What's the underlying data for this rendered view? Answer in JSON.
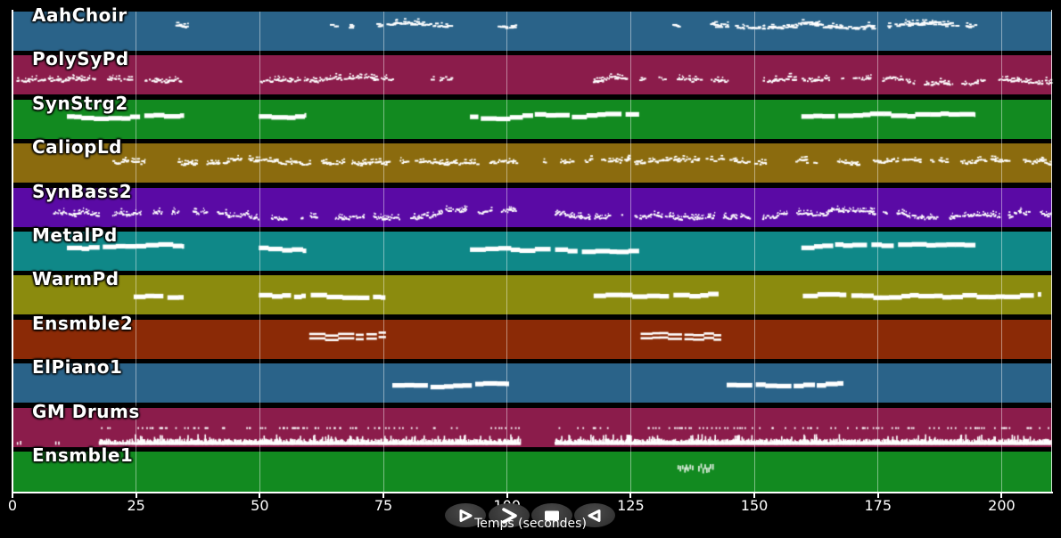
{
  "axis": {
    "label": "Temps (secondes)",
    "ticks": [
      0,
      25,
      50,
      75,
      100,
      125,
      150,
      175,
      200
    ]
  },
  "controls": {
    "buttons": [
      {
        "name": "play",
        "icon": "play-icon"
      },
      {
        "name": "fast-forward",
        "icon": "fast-forward-icon"
      },
      {
        "name": "stop",
        "icon": "stop-icon"
      },
      {
        "name": "rewind",
        "icon": "rewind-icon"
      }
    ]
  },
  "chart_data": {
    "type": "midi-track-timeline",
    "xlabel": "Temps (secondes)",
    "x_ticks": [
      0,
      25,
      50,
      75,
      100,
      125,
      150,
      175,
      200
    ],
    "x_range": [
      0,
      210.2
    ],
    "grid": true,
    "note_color": "#ffffff",
    "tracks": [
      {
        "name": "AahChoir",
        "color": "#2A6389",
        "style": "dots",
        "level": 0.33,
        "amp": 0.06,
        "density": 3.0,
        "mark_w": 4,
        "segments": [
          {
            "t0": 32.6,
            "t1": 35.2
          },
          {
            "t0": 63.8,
            "t1": 68.2
          },
          {
            "t0": 73.2,
            "t1": 88.6
          },
          {
            "t0": 97.8,
            "t1": 102.2
          },
          {
            "t0": 132.6,
            "t1": 134.4
          },
          {
            "t0": 140.6,
            "t1": 144.4
          },
          {
            "t0": 145.6,
            "t1": 191.2
          },
          {
            "t0": 192.2,
            "t1": 194.6
          }
        ]
      },
      {
        "name": "PolySyPd",
        "color": "#8B1C4B",
        "style": "dots",
        "level": 0.62,
        "amp": 0.1,
        "density": 3.8,
        "mark_w": 2.5,
        "segments": [
          {
            "t0": 0.5,
            "t1": 34.0
          },
          {
            "t0": 49.8,
            "t1": 76.8
          },
          {
            "t0": 84.2,
            "t1": 88.6
          },
          {
            "t0": 117.0,
            "t1": 145.2
          },
          {
            "t0": 151.4,
            "t1": 209.8
          }
        ]
      },
      {
        "name": "SynStrg2",
        "color": "#128A20",
        "style": "melody",
        "level": 0.47,
        "amp": 0.11,
        "segments": [
          {
            "t0": 11.0,
            "t1": 34.6
          },
          {
            "t0": 49.8,
            "t1": 59.3
          },
          {
            "t0": 92.5,
            "t1": 126.6
          },
          {
            "t0": 159.5,
            "t1": 194.6
          }
        ]
      },
      {
        "name": "CaliopLd",
        "color": "#8B6B0E",
        "style": "dots",
        "level": 0.44,
        "amp": 0.06,
        "density": 3.4,
        "mark_w": 3,
        "segments": [
          {
            "t0": 19.8,
            "t1": 26.6
          },
          {
            "t0": 33.0,
            "t1": 61.5
          },
          {
            "t0": 62.0,
            "t1": 80.2
          },
          {
            "t0": 80.8,
            "t1": 102.2
          },
          {
            "t0": 107.0,
            "t1": 124.8
          },
          {
            "t0": 125.4,
            "t1": 152.4
          },
          {
            "t0": 158.0,
            "t1": 162.6
          },
          {
            "t0": 166.4,
            "t1": 171.4
          },
          {
            "t0": 173.6,
            "t1": 186.2
          },
          {
            "t0": 187.0,
            "t1": 209.9
          }
        ]
      },
      {
        "name": "SynBass2",
        "color": "#5A0AA5",
        "style": "dots",
        "level": 0.66,
        "amp": 0.11,
        "density": 5.2,
        "mark_w": 2,
        "segments": [
          {
            "t0": 8.0,
            "t1": 103.0
          },
          {
            "t0": 109.5,
            "t1": 209.9
          }
        ]
      },
      {
        "name": "MetalPd",
        "color": "#0F8888",
        "style": "melody",
        "level": 0.42,
        "amp": 0.1,
        "segments": [
          {
            "t0": 11.0,
            "t1": 34.6
          },
          {
            "t0": 49.8,
            "t1": 59.3
          },
          {
            "t0": 92.5,
            "t1": 126.6
          },
          {
            "t0": 159.5,
            "t1": 194.6
          }
        ]
      },
      {
        "name": "WarmPd",
        "color": "#8B8B0E",
        "style": "melody",
        "level": 0.52,
        "amp": 0.05,
        "segments": [
          {
            "t0": 24.5,
            "t1": 34.5
          },
          {
            "t0": 49.8,
            "t1": 59.2
          },
          {
            "t0": 60.3,
            "t1": 75.3
          },
          {
            "t0": 117.5,
            "t1": 142.8
          },
          {
            "t0": 159.8,
            "t1": 168.5
          },
          {
            "t0": 169.6,
            "t1": 207.9
          }
        ]
      },
      {
        "name": "Ensmble2",
        "color": "#8B2A06",
        "style": "chords",
        "level": 0.44,
        "amp": 0.04,
        "segments": [
          {
            "t0": 60.0,
            "t1": 75.4
          },
          {
            "t0": 127.0,
            "t1": 143.2
          }
        ]
      },
      {
        "name": "ElPiano1",
        "color": "#2A6389",
        "style": "melody",
        "level": 0.55,
        "amp": 0.05,
        "segments": [
          {
            "t0": 76.8,
            "t1": 100.3
          },
          {
            "t0": 144.4,
            "t1": 167.9
          }
        ]
      },
      {
        "name": "GM Drums",
        "color": "#8B1C4B",
        "style": "drums",
        "level": 0.93,
        "segments": [
          {
            "t0": 0.2,
            "t1": 2.2,
            "d": 1.2
          },
          {
            "t0": 8.0,
            "t1": 9.5,
            "d": 1.5
          },
          {
            "t0": 17.3,
            "t1": 24.5,
            "d": 5
          },
          {
            "t0": 24.5,
            "t1": 102.6,
            "d": 9
          },
          {
            "t0": 109.5,
            "t1": 209.9,
            "d": 9
          }
        ]
      },
      {
        "name": "Ensmble1",
        "color": "#128A20",
        "style": "hatch",
        "level": 0.43,
        "note_color": "#D8EAD8",
        "segments": [
          {
            "t0": 134.2,
            "t1": 137.2
          },
          {
            "t0": 138.2,
            "t1": 141.4
          }
        ]
      }
    ]
  }
}
